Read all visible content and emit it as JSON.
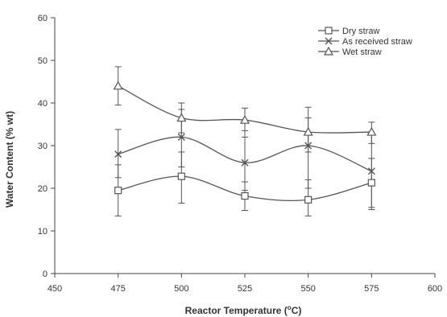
{
  "chart_data": {
    "type": "line",
    "xlabel": "Reactor Temperature (°C)",
    "xlabel_main": "Reactor Temperature (",
    "xlabel_degree": "o",
    "xlabel_unit": "C)",
    "ylabel": "Water Content (% wt)",
    "xlim": [
      450,
      600
    ],
    "ylim": [
      0,
      60
    ],
    "x_ticks": [
      450,
      475,
      500,
      525,
      550,
      575,
      600
    ],
    "y_ticks": [
      0,
      10,
      20,
      30,
      40,
      50,
      60
    ],
    "x": [
      475,
      500,
      525,
      550,
      575
    ],
    "grid": false,
    "legend_position": "top-right",
    "series": [
      {
        "name": "Dry straw",
        "marker": "square",
        "values": [
          19.5,
          22.8,
          18.2,
          17.3,
          21.3
        ],
        "err_low": [
          13.5,
          16.5,
          14.8,
          13.5,
          15.5
        ],
        "err_high": [
          25.5,
          28.5,
          21.5,
          22.0,
          27.0
        ]
      },
      {
        "name": "As received straw",
        "marker": "x",
        "values": [
          28.0,
          32.0,
          26.0,
          30.0,
          24.0
        ],
        "err_low": [
          22.5,
          25.0,
          19.5,
          20.0,
          15.0
        ],
        "err_high": [
          33.8,
          38.5,
          33.5,
          39.0,
          33.0
        ]
      },
      {
        "name": "Wet straw",
        "marker": "triangle",
        "values": [
          44.0,
          36.5,
          36.0,
          33.2,
          33.2
        ],
        "err_low": [
          39.5,
          33.0,
          32.0,
          28.5,
          30.5
        ],
        "err_high": [
          48.5,
          40.0,
          38.8,
          36.5,
          35.5
        ]
      }
    ],
    "colors": {
      "line": "#555555",
      "marker_fill": "#ffffff",
      "axis": "#444444"
    }
  }
}
